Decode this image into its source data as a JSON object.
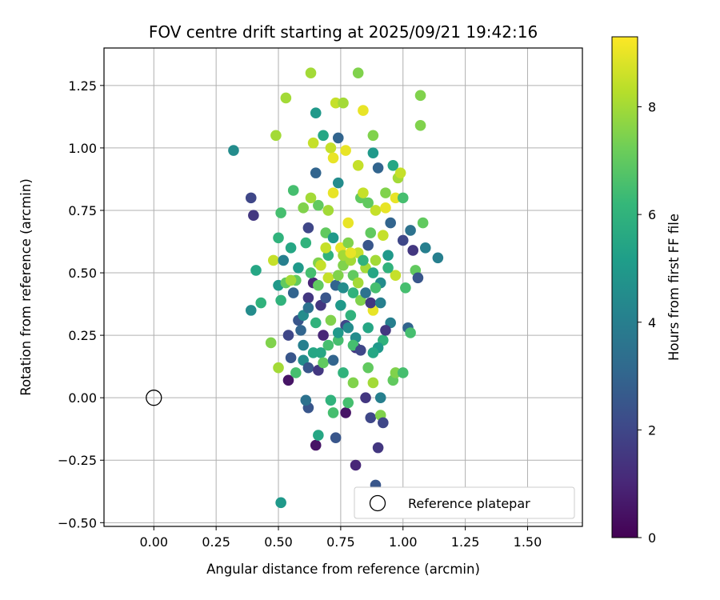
{
  "chart_data": {
    "type": "scatter",
    "title": "FOV centre drift starting at 2025/09/21 19:42:16",
    "xlabel": "Angular distance from reference (arcmin)",
    "ylabel": "Rotation from reference (arcmin)",
    "xlim": [
      -0.2,
      1.72
    ],
    "ylim": [
      -0.515,
      1.4
    ],
    "xticks": [
      0.0,
      0.25,
      0.5,
      0.75,
      1.0,
      1.25,
      1.5
    ],
    "xtick_labels": [
      "0.00",
      "0.25",
      "0.50",
      "0.75",
      "1.00",
      "1.25",
      "1.50"
    ],
    "yticks": [
      -0.5,
      -0.25,
      0.0,
      0.25,
      0.5,
      0.75,
      1.0,
      1.25
    ],
    "ytick_labels": [
      "−0.50",
      "−0.25",
      "0.00",
      "0.25",
      "0.50",
      "0.75",
      "1.00",
      "1.25"
    ],
    "grid": true,
    "legend": {
      "position": "lower-right",
      "entries": [
        {
          "label": "Reference platepar",
          "marker": "open-circle"
        }
      ]
    },
    "reference_point": {
      "x": 0.0,
      "y": 0.0,
      "label": "Reference platepar"
    },
    "colorbar": {
      "label": "Hours from first FF file",
      "range": [
        0,
        9.3
      ],
      "ticks": [
        0,
        2,
        4,
        6,
        8
      ],
      "tick_labels": [
        "0",
        "2",
        "4",
        "6",
        "8"
      ],
      "colormap": "viridis"
    },
    "colormap_stops": [
      "#440154",
      "#482878",
      "#3e4989",
      "#31688e",
      "#26828e",
      "#1f9e89",
      "#35b779",
      "#6ece58",
      "#b5de2b",
      "#fde725"
    ],
    "points": [
      [
        0.32,
        0.99,
        4.5
      ],
      [
        0.39,
        0.8,
        2.0
      ],
      [
        0.4,
        0.73,
        1.5
      ],
      [
        0.41,
        0.51,
        5.5
      ],
      [
        0.39,
        0.35,
        4.5
      ],
      [
        0.43,
        0.38,
        6.0
      ],
      [
        0.47,
        0.22,
        7.5
      ],
      [
        0.48,
        0.55,
        8.5
      ],
      [
        0.49,
        1.05,
        8.0
      ],
      [
        0.5,
        0.64,
        6.0
      ],
      [
        0.5,
        0.45,
        5.0
      ],
      [
        0.51,
        0.39,
        6.0
      ],
      [
        0.51,
        0.74,
        6.5
      ],
      [
        0.52,
        0.55,
        4.0
      ],
      [
        0.53,
        1.2,
        8.0
      ],
      [
        0.54,
        0.25,
        2.0
      ],
      [
        0.54,
        0.07,
        0.5
      ],
      [
        0.55,
        0.16,
        2.5
      ],
      [
        0.56,
        0.83,
        6.5
      ],
      [
        0.57,
        0.47,
        7.0
      ],
      [
        0.58,
        0.31,
        2.5
      ],
      [
        0.59,
        0.27,
        3.0
      ],
      [
        0.6,
        0.21,
        4.0
      ],
      [
        0.61,
        0.62,
        6.0
      ],
      [
        0.62,
        0.68,
        2.0
      ],
      [
        0.62,
        0.4,
        1.5
      ],
      [
        0.63,
        1.3,
        8.0
      ],
      [
        0.64,
        1.02,
        8.5
      ],
      [
        0.64,
        0.46,
        1.0
      ],
      [
        0.65,
        0.9,
        3.0
      ],
      [
        0.65,
        1.14,
        5.0
      ],
      [
        0.66,
        0.77,
        7.0
      ],
      [
        0.66,
        0.54,
        7.5
      ],
      [
        0.67,
        0.37,
        1.5
      ],
      [
        0.67,
        0.18,
        5.5
      ],
      [
        0.68,
        1.05,
        5.5
      ],
      [
        0.69,
        0.66,
        7.0
      ],
      [
        0.7,
        0.75,
        8.0
      ],
      [
        0.7,
        0.48,
        8.5
      ],
      [
        0.71,
        1.0,
        8.5
      ],
      [
        0.72,
        0.96,
        9.0
      ],
      [
        0.72,
        0.82,
        9.0
      ],
      [
        0.73,
        1.18,
        8.5
      ],
      [
        0.74,
        1.04,
        3.0
      ],
      [
        0.74,
        0.86,
        4.5
      ],
      [
        0.75,
        0.6,
        9.0
      ],
      [
        0.76,
        0.53,
        7.5
      ],
      [
        0.76,
        1.18,
        8.0
      ],
      [
        0.77,
        0.99,
        9.0
      ],
      [
        0.78,
        0.7,
        9.0
      ],
      [
        0.79,
        0.55,
        8.0
      ],
      [
        0.8,
        0.42,
        6.0
      ],
      [
        0.81,
        0.2,
        1.5
      ],
      [
        0.82,
        1.3,
        7.5
      ],
      [
        0.82,
        0.93,
        8.5
      ],
      [
        0.83,
        0.8,
        7.0
      ],
      [
        0.84,
        1.15,
        9.0
      ],
      [
        0.85,
        0.52,
        8.0
      ],
      [
        0.86,
        0.28,
        5.5
      ],
      [
        0.87,
        0.66,
        7.0
      ],
      [
        0.88,
        0.98,
        5.0
      ],
      [
        0.88,
        1.05,
        7.5
      ],
      [
        0.88,
        0.35,
        9.0
      ],
      [
        0.89,
        0.75,
        8.5
      ],
      [
        0.9,
        0.92,
        3.0
      ],
      [
        0.91,
        0.46,
        4.5
      ],
      [
        0.92,
        0.23,
        6.0
      ],
      [
        0.93,
        0.76,
        9.0
      ],
      [
        0.94,
        0.57,
        5.0
      ],
      [
        0.95,
        0.3,
        4.0
      ],
      [
        0.96,
        0.93,
        5.5
      ],
      [
        0.97,
        0.8,
        9.0
      ],
      [
        0.97,
        0.49,
        8.5
      ],
      [
        0.98,
        0.88,
        8.0
      ],
      [
        0.99,
        0.9,
        8.5
      ],
      [
        1.0,
        0.8,
        6.5
      ],
      [
        1.0,
        0.63,
        2.0
      ],
      [
        1.01,
        0.44,
        6.5
      ],
      [
        1.02,
        0.28,
        3.0
      ],
      [
        1.03,
        0.26,
        6.5
      ],
      [
        1.03,
        0.67,
        3.5
      ],
      [
        1.04,
        0.59,
        1.5
      ],
      [
        1.05,
        0.51,
        7.0
      ],
      [
        1.06,
        0.48,
        2.5
      ],
      [
        1.07,
        1.21,
        7.5
      ],
      [
        1.07,
        1.09,
        7.5
      ],
      [
        1.08,
        0.7,
        7.0
      ],
      [
        1.09,
        0.6,
        4.0
      ],
      [
        1.14,
        0.56,
        4.0
      ],
      [
        0.55,
        0.6,
        5.5
      ],
      [
        0.56,
        0.42,
        3.0
      ],
      [
        0.58,
        0.52,
        5.0
      ],
      [
        0.6,
        0.33,
        4.5
      ],
      [
        0.62,
        0.36,
        3.5
      ],
      [
        0.63,
        0.5,
        6.5
      ],
      [
        0.65,
        0.3,
        6.0
      ],
      [
        0.66,
        0.45,
        7.0
      ],
      [
        0.68,
        0.25,
        1.0
      ],
      [
        0.69,
        0.4,
        2.5
      ],
      [
        0.7,
        0.57,
        6.0
      ],
      [
        0.71,
        0.31,
        7.5
      ],
      [
        0.72,
        0.64,
        5.0
      ],
      [
        0.73,
        0.45,
        3.0
      ],
      [
        0.74,
        0.23,
        6.5
      ],
      [
        0.75,
        0.37,
        5.0
      ],
      [
        0.76,
        0.44,
        4.5
      ],
      [
        0.77,
        0.29,
        2.0
      ],
      [
        0.78,
        0.62,
        7.5
      ],
      [
        0.79,
        0.33,
        6.0
      ],
      [
        0.8,
        0.49,
        7.0
      ],
      [
        0.81,
        0.24,
        4.5
      ],
      [
        0.82,
        0.58,
        8.5
      ],
      [
        0.83,
        0.39,
        7.5
      ],
      [
        0.84,
        0.55,
        6.0
      ],
      [
        0.85,
        0.42,
        3.5
      ],
      [
        0.86,
        0.61,
        2.5
      ],
      [
        0.87,
        0.38,
        1.5
      ],
      [
        0.88,
        0.5,
        5.5
      ],
      [
        0.89,
        0.44,
        6.5
      ],
      [
        0.9,
        0.2,
        5.0
      ],
      [
        0.91,
        0.38,
        4.0
      ],
      [
        0.92,
        0.65,
        8.5
      ],
      [
        0.93,
        0.27,
        1.5
      ],
      [
        0.94,
        0.52,
        6.0
      ],
      [
        0.95,
        0.7,
        3.0
      ],
      [
        0.6,
        0.15,
        4.5
      ],
      [
        0.62,
        0.12,
        2.5
      ],
      [
        0.64,
        0.18,
        5.5
      ],
      [
        0.66,
        0.11,
        1.5
      ],
      [
        0.68,
        0.14,
        7.0
      ],
      [
        0.7,
        0.21,
        6.5
      ],
      [
        0.72,
        0.15,
        3.0
      ],
      [
        0.74,
        0.26,
        5.0
      ],
      [
        0.76,
        0.1,
        6.0
      ],
      [
        0.78,
        0.28,
        4.5
      ],
      [
        0.8,
        0.21,
        6.5
      ],
      [
        0.83,
        0.19,
        2.0
      ],
      [
        0.86,
        0.12,
        7.0
      ],
      [
        0.88,
        0.18,
        5.5
      ],
      [
        0.96,
        0.07,
        7.0
      ],
      [
        0.97,
        0.1,
        7.5
      ],
      [
        1.0,
        0.1,
        6.5
      ],
      [
        0.91,
        0.0,
        4.0
      ],
      [
        0.62,
        -0.04,
        2.5
      ],
      [
        0.61,
        -0.01,
        3.5
      ],
      [
        0.65,
        -0.19,
        0.5
      ],
      [
        0.66,
        -0.15,
        5.5
      ],
      [
        0.71,
        -0.01,
        6.0
      ],
      [
        0.72,
        -0.06,
        6.5
      ],
      [
        0.73,
        -0.16,
        2.5
      ],
      [
        0.77,
        -0.06,
        0.5
      ],
      [
        0.78,
        -0.02,
        6.5
      ],
      [
        0.8,
        0.06,
        7.5
      ],
      [
        0.81,
        -0.27,
        1.0
      ],
      [
        0.85,
        0.0,
        1.5
      ],
      [
        0.87,
        -0.08,
        2.0
      ],
      [
        0.9,
        -0.2,
        1.5
      ],
      [
        0.91,
        -0.07,
        7.5
      ],
      [
        0.92,
        -0.1,
        2.0
      ],
      [
        0.89,
        -0.35,
        2.5
      ],
      [
        0.51,
        -0.42,
        5.0
      ],
      [
        0.88,
        0.06,
        8.0
      ],
      [
        0.5,
        0.12,
        8.0
      ],
      [
        0.57,
        0.1,
        6.5
      ],
      [
        0.53,
        0.46,
        7.0
      ],
      [
        0.55,
        0.47,
        8.0
      ],
      [
        0.6,
        0.76,
        7.5
      ],
      [
        0.63,
        0.8,
        8.0
      ],
      [
        0.67,
        0.53,
        8.5
      ],
      [
        0.69,
        0.6,
        8.5
      ],
      [
        0.74,
        0.49,
        7.5
      ],
      [
        0.76,
        0.57,
        8.0
      ],
      [
        0.79,
        0.58,
        9.0
      ],
      [
        0.82,
        0.46,
        8.0
      ],
      [
        0.84,
        0.82,
        8.5
      ],
      [
        0.86,
        0.78,
        7.0
      ],
      [
        0.89,
        0.55,
        8.0
      ],
      [
        0.93,
        0.82,
        7.5
      ]
    ]
  }
}
